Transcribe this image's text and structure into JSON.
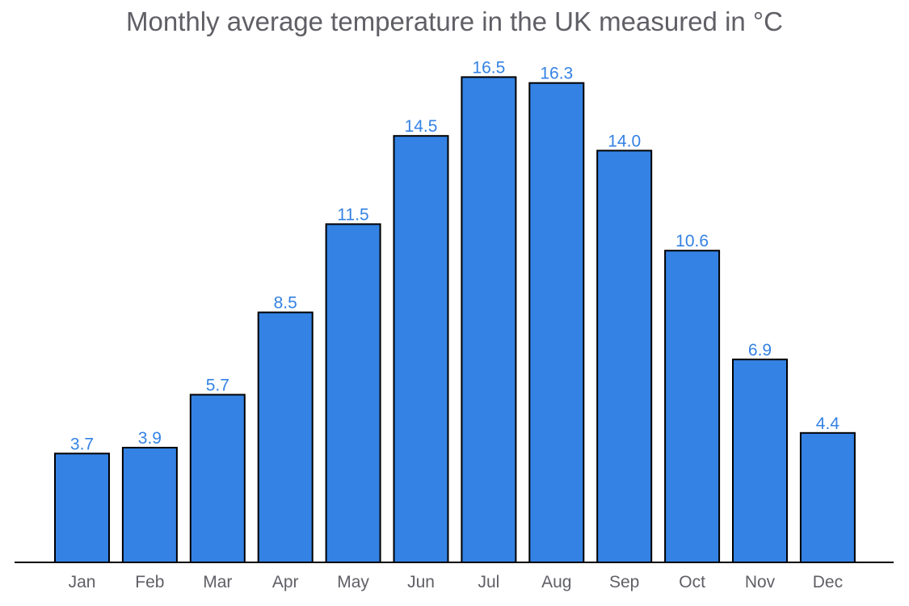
{
  "chart_data": {
    "type": "bar",
    "title": "Monthly average temperature in the UK measured in °C",
    "categories": [
      "Jan",
      "Feb",
      "Mar",
      "Apr",
      "May",
      "Jun",
      "Jul",
      "Aug",
      "Sep",
      "Oct",
      "Nov",
      "Dec"
    ],
    "values": [
      3.7,
      3.9,
      5.7,
      8.5,
      11.5,
      14.5,
      16.5,
      16.3,
      14.0,
      10.6,
      6.9,
      4.4
    ],
    "value_labels": [
      "3.7",
      "3.9",
      "5.7",
      "8.5",
      "11.5",
      "14.5",
      "16.5",
      "16.3",
      "14.0",
      "10.6",
      "6.9",
      "4.4"
    ],
    "xlabel": "",
    "ylabel": "",
    "ylim": [
      0,
      17
    ],
    "grid": false,
    "legend": "none",
    "colors": {
      "bar_fill": "#3482e3",
      "bar_stroke": "#000000",
      "value_label": "#3482e3",
      "tick_label": "#5f5f66",
      "title": "#5f5f66",
      "axis": "#000000"
    }
  }
}
